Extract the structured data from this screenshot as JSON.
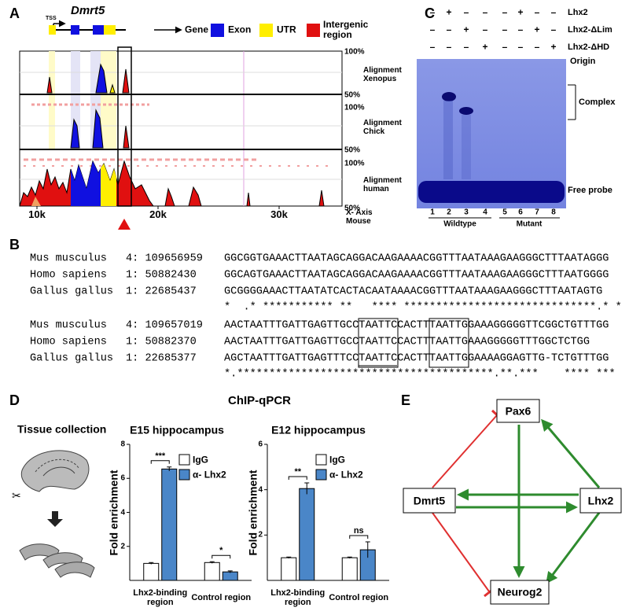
{
  "panel_a": {
    "label": "A",
    "gene": "Dmrt5",
    "tss": "TSS",
    "legend": [
      "Gene",
      "Exon",
      "UTR",
      "Intergenic region"
    ],
    "tracks": [
      {
        "name": "Alignment Xenopus",
        "top": "100%",
        "bottom": "50%"
      },
      {
        "name": "Alignment Chick",
        "top": "100%",
        "bottom": "50%"
      },
      {
        "name": "Alignment human",
        "top": "100%",
        "bottom": "50%"
      }
    ],
    "x_ticks": [
      {
        "value": 10000,
        "label": "10k"
      },
      {
        "value": 20000,
        "label": "20k"
      },
      {
        "value": 30000,
        "label": "30k"
      }
    ],
    "x_axis_label": "X- Axis Mouse"
  },
  "panel_b": {
    "label": "B",
    "blocks": [
      {
        "rows": [
          {
            "species": "Mus musculus",
            "coord": "4: 109656959",
            "sequence": "GGCGGTGAAACTTAATAGCAGGACAAGAAAACGGTTTAATAAAGAAGGGCTTTAATAGGG"
          },
          {
            "species": "Homo sapiens",
            "coord": "1: 50882430",
            "sequence": "GGCAGTGAAACTTAATAGCAGGACAAGAAAACGGTTTAATAAAGAAGGGCTTTAATGGGG"
          },
          {
            "species": "Gallus gallus",
            "coord": "1: 22685437",
            "sequence": "GCGGGGAAACTTAATATCACTACAATAAAACGGTTTAATAAAGAAGGGCTTTAATAGTG"
          }
        ],
        "conservation": "*  .* *********** **   **** ******************************.* *"
      },
      {
        "rows": [
          {
            "species": "Mus musculus",
            "coord": "4: 109657019",
            "sequence": "AACTAATTTGATTGAGTTGCCTAATTCCACTTTAATTGGAAAGGGGGTTCGGCTGTTTGG"
          },
          {
            "species": "Homo sapiens",
            "coord": "1: 50882370",
            "sequence": "AACTAATTTGATTGAGTTGCCTAATTCCACTTTAATTGAAAGGGGGTTTGGCTCTGG"
          },
          {
            "species": "Gallus gallus",
            "coord": "1: 22685377",
            "sequence": "AGCTAATTTGATTGAGTTTCCTAATTCCACTTTAATTGGAAAAGGAGTTG-TCTGTTTGG"
          }
        ],
        "conservation": "*.****************************************.**.***    **** ***"
      }
    ]
  },
  "panel_c": {
    "label": "C",
    "treatments": [
      {
        "name": "Lhx2",
        "lanes": [
          "–",
          "+",
          "–",
          "–",
          "–",
          "+",
          "–",
          "–"
        ]
      },
      {
        "name": "Lhx2-ΔLim",
        "lanes": [
          "–",
          "–",
          "+",
          "–",
          "–",
          "–",
          "+",
          "–"
        ]
      },
      {
        "name": "Lhx2-ΔHD",
        "lanes": [
          "–",
          "–",
          "–",
          "+",
          "–",
          "–",
          "–",
          "+"
        ]
      }
    ],
    "lane_numbers": [
      1,
      2,
      3,
      4,
      5,
      6,
      7,
      8
    ],
    "groups": [
      "Wildtype",
      "Mutant"
    ],
    "origin": "Origin",
    "complex": "Complex",
    "free_probe": "Free probe"
  },
  "panel_d": {
    "label": "D",
    "title": "ChIP-qPCR",
    "tissue_label": "Tissue collection"
  },
  "chart_data": [
    {
      "type": "bar",
      "title": "E15 hippocampus",
      "y_label": "Fold enrichment",
      "categories": [
        "Lhx2-binding region",
        "Control region"
      ],
      "series": [
        {
          "name": "IgG",
          "color": "#ffffff",
          "values": [
            1.0,
            1.05
          ],
          "errors": [
            0.05,
            0.05
          ]
        },
        {
          "name": "α- Lhx2",
          "color": "#4a86c8",
          "values": [
            6.55,
            0.5
          ],
          "errors": [
            0.12,
            0.06
          ]
        }
      ],
      "ylim": [
        0,
        8
      ],
      "yticks": [
        2,
        4,
        6,
        8
      ],
      "significance": [
        "***",
        "*"
      ]
    },
    {
      "type": "bar",
      "title": "E12 hippocampus",
      "y_label": "Fold enrichment",
      "categories": [
        "Lhx2-binding region",
        "Control region"
      ],
      "series": [
        {
          "name": "IgG",
          "color": "#ffffff",
          "values": [
            1.0,
            1.0
          ],
          "errors": [
            0.03,
            0.03
          ]
        },
        {
          "name": "α- Lhx2",
          "color": "#4a86c8",
          "values": [
            4.05,
            1.35
          ],
          "errors": [
            0.25,
            0.35
          ]
        }
      ],
      "ylim": [
        0,
        6
      ],
      "yticks": [
        2,
        4,
        6
      ],
      "significance": [
        "**",
        "ns"
      ]
    }
  ],
  "panel_e": {
    "label": "E",
    "nodes": [
      "Pax6",
      "Dmrt5",
      "Lhx2",
      "Neurog2"
    ]
  }
}
